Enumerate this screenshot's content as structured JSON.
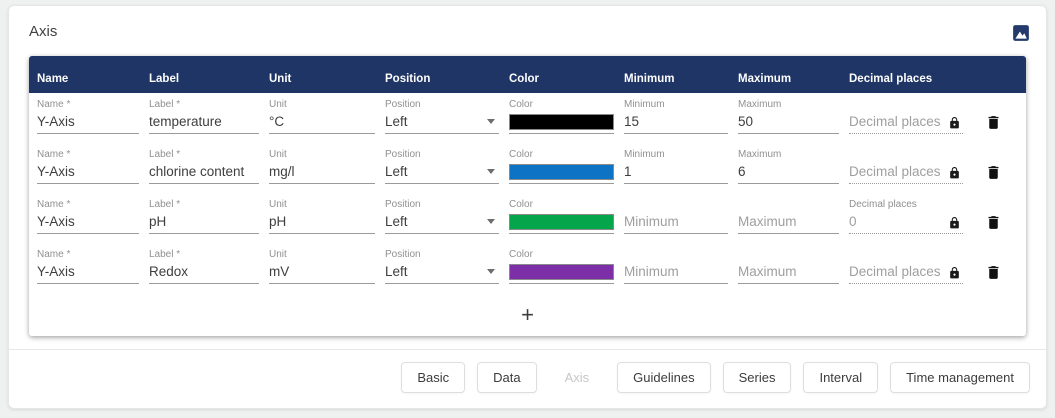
{
  "page": {
    "title": "Axis"
  },
  "toolbar": {
    "icons": {
      "image": "image-icon"
    }
  },
  "table": {
    "columns": [
      "Name",
      "Label",
      "Unit",
      "Position",
      "Color",
      "Minimum",
      "Maximum",
      "Decimal places"
    ],
    "field_labels": {
      "name": "Name *",
      "label": "Label *",
      "unit": "Unit",
      "position": "Position",
      "color": "Color",
      "minimum": "Minimum",
      "maximum": "Maximum",
      "decimal": "Decimal places"
    },
    "placeholders": {
      "minimum": "Minimum",
      "maximum": "Maximum",
      "decimal": "Decimal places"
    },
    "rows": [
      {
        "name": "Y-Axis",
        "label": "temperature",
        "unit": "°C",
        "position": "Left",
        "color": "#000000",
        "minimum": "15",
        "maximum": "50",
        "decimal": ""
      },
      {
        "name": "Y-Axis",
        "label": "chlorine content",
        "unit": "mg/l",
        "position": "Left",
        "color": "#0d73c4",
        "minimum": "1",
        "maximum": "6",
        "decimal": ""
      },
      {
        "name": "Y-Axis",
        "label": "pH",
        "unit": "pH",
        "position": "Left",
        "color": "#04a54b",
        "minimum": "",
        "maximum": "",
        "decimal": "0"
      },
      {
        "name": "Y-Axis",
        "label": "Redox",
        "unit": "mV",
        "position": "Left",
        "color": "#7c2fa6",
        "minimum": "",
        "maximum": "",
        "decimal": ""
      }
    ],
    "row_icons": {
      "lock": "lock-icon",
      "delete": "trash-icon",
      "dropdown": "chevron-down-icon"
    },
    "add_label": "+"
  },
  "footer": {
    "buttons": [
      {
        "label": "Basic",
        "disabled": false
      },
      {
        "label": "Data",
        "disabled": false
      },
      {
        "label": "Axis",
        "disabled": true
      },
      {
        "label": "Guidelines",
        "disabled": false
      },
      {
        "label": "Series",
        "disabled": false
      },
      {
        "label": "Interval",
        "disabled": false
      },
      {
        "label": "Time management",
        "disabled": false
      }
    ]
  },
  "colors": {
    "table_header_bg": "#1e3565",
    "page_bg": "#eff1f1"
  }
}
